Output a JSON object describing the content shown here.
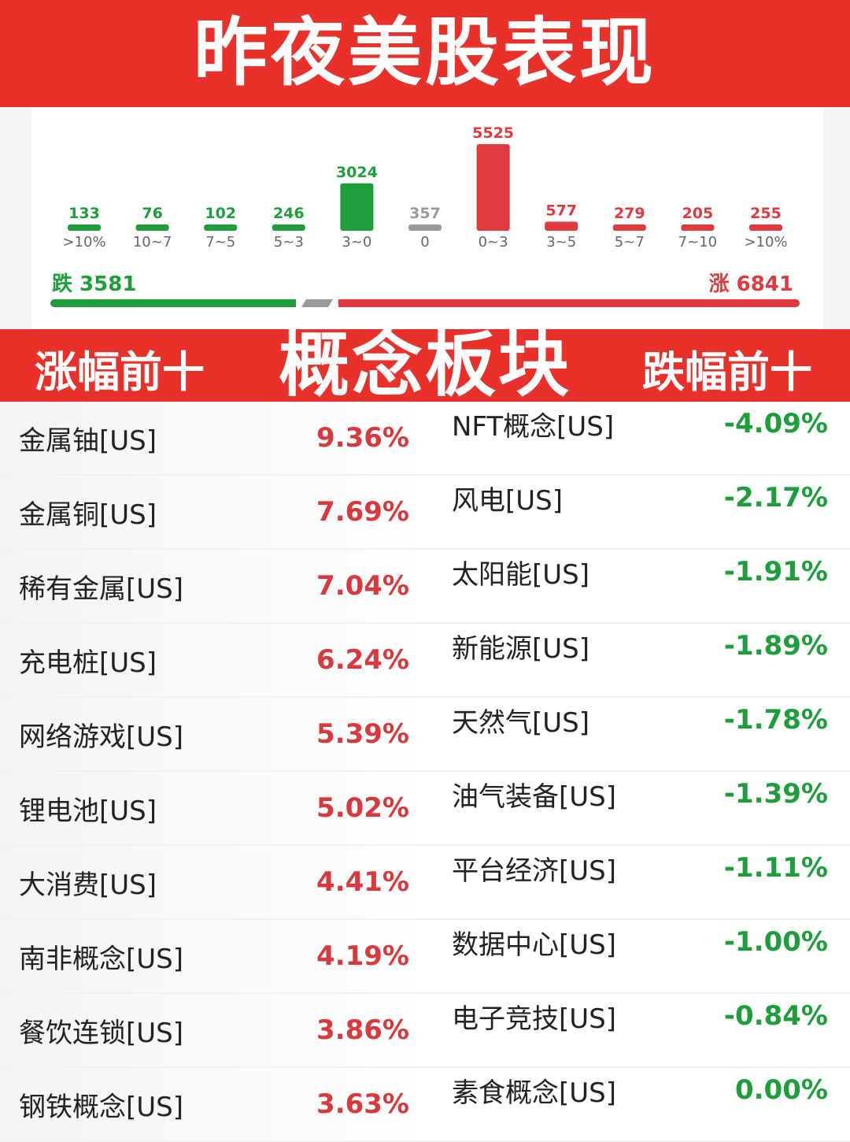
{
  "header": {
    "title": "昨夜美股表现"
  },
  "chart_data": {
    "type": "bar",
    "categories": [
      ">10%",
      "10~7",
      "7~5",
      "5~3",
      "3~0",
      "0",
      "0~3",
      "3~5",
      "5~7",
      "7~10",
      ">10%"
    ],
    "values": [
      133,
      76,
      102,
      246,
      3024,
      357,
      5525,
      577,
      279,
      205,
      255
    ],
    "value_labels": [
      "133",
      "76",
      "102",
      "246",
      "3024",
      "357",
      "5525",
      "577",
      "279",
      "205",
      "255"
    ],
    "bar_colors": [
      "#1e9e3a",
      "#1e9e3a",
      "#1e9e3a",
      "#1e9e3a",
      "#1e9e3a",
      "#9a9a9a",
      "#e03a3e",
      "#e03a3e",
      "#e03a3e",
      "#e03a3e",
      "#e03a3e"
    ],
    "title": "",
    "xlabel": "",
    "ylabel": ""
  },
  "summary": {
    "fall_label": "跌 3581",
    "rise_label": "涨 6841",
    "fall_count": 3581,
    "flat_count": 357,
    "rise_count": 6841
  },
  "section": {
    "title": "概念板块",
    "left_label": "涨幅前十",
    "right_label": "跌幅前十"
  },
  "gainers": [
    {
      "name": "金属铀[US]",
      "change": "9.36%"
    },
    {
      "name": "金属铜[US]",
      "change": "7.69%"
    },
    {
      "name": "稀有金属[US]",
      "change": "7.04%"
    },
    {
      "name": "充电桩[US]",
      "change": "6.24%"
    },
    {
      "name": "网络游戏[US]",
      "change": "5.39%"
    },
    {
      "name": "锂电池[US]",
      "change": "5.02%"
    },
    {
      "name": "大消费[US]",
      "change": "4.41%"
    },
    {
      "name": "南非概念[US]",
      "change": "4.19%"
    },
    {
      "name": "餐饮连锁[US]",
      "change": "3.86%"
    },
    {
      "name": "钢铁概念[US]",
      "change": "3.63%"
    }
  ],
  "losers": [
    {
      "name": "NFT概念[US]",
      "change": "-4.09%"
    },
    {
      "name": "风电[US]",
      "change": "-2.17%"
    },
    {
      "name": "太阳能[US]",
      "change": "-1.91%"
    },
    {
      "name": "新能源[US]",
      "change": "-1.89%"
    },
    {
      "name": "天然气[US]",
      "change": "-1.78%"
    },
    {
      "name": "油气装备[US]",
      "change": "-1.39%"
    },
    {
      "name": "平台经济[US]",
      "change": "-1.11%"
    },
    {
      "name": "数据中心[US]",
      "change": "-1.00%"
    },
    {
      "name": "电子竞技[US]",
      "change": "-0.84%"
    },
    {
      "name": "素食概念[US]",
      "change": "0.00%"
    }
  ],
  "colors": {
    "banner": "#e8312a",
    "rise": "#e03a3e",
    "fall": "#1e9e3a",
    "flat": "#9a9a9a"
  }
}
